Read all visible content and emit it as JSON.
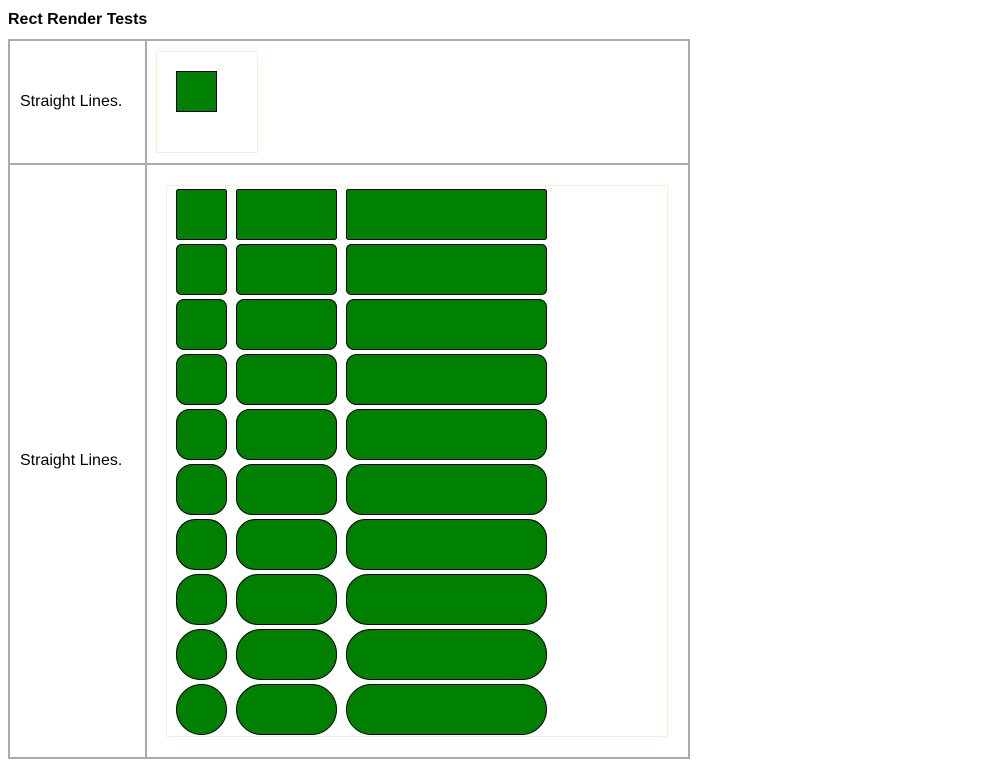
{
  "page": {
    "title": "Rect Render Tests"
  },
  "rows": [
    {
      "label": "Straight Lines."
    },
    {
      "label": "Straight Lines."
    }
  ],
  "colors": {
    "fill": "#008000",
    "stroke": "#000000",
    "canvas_border": "#eef5d0",
    "table_border": "#aaaaaa"
  },
  "rounded_grid": {
    "rows": 10,
    "columns": 3
  }
}
